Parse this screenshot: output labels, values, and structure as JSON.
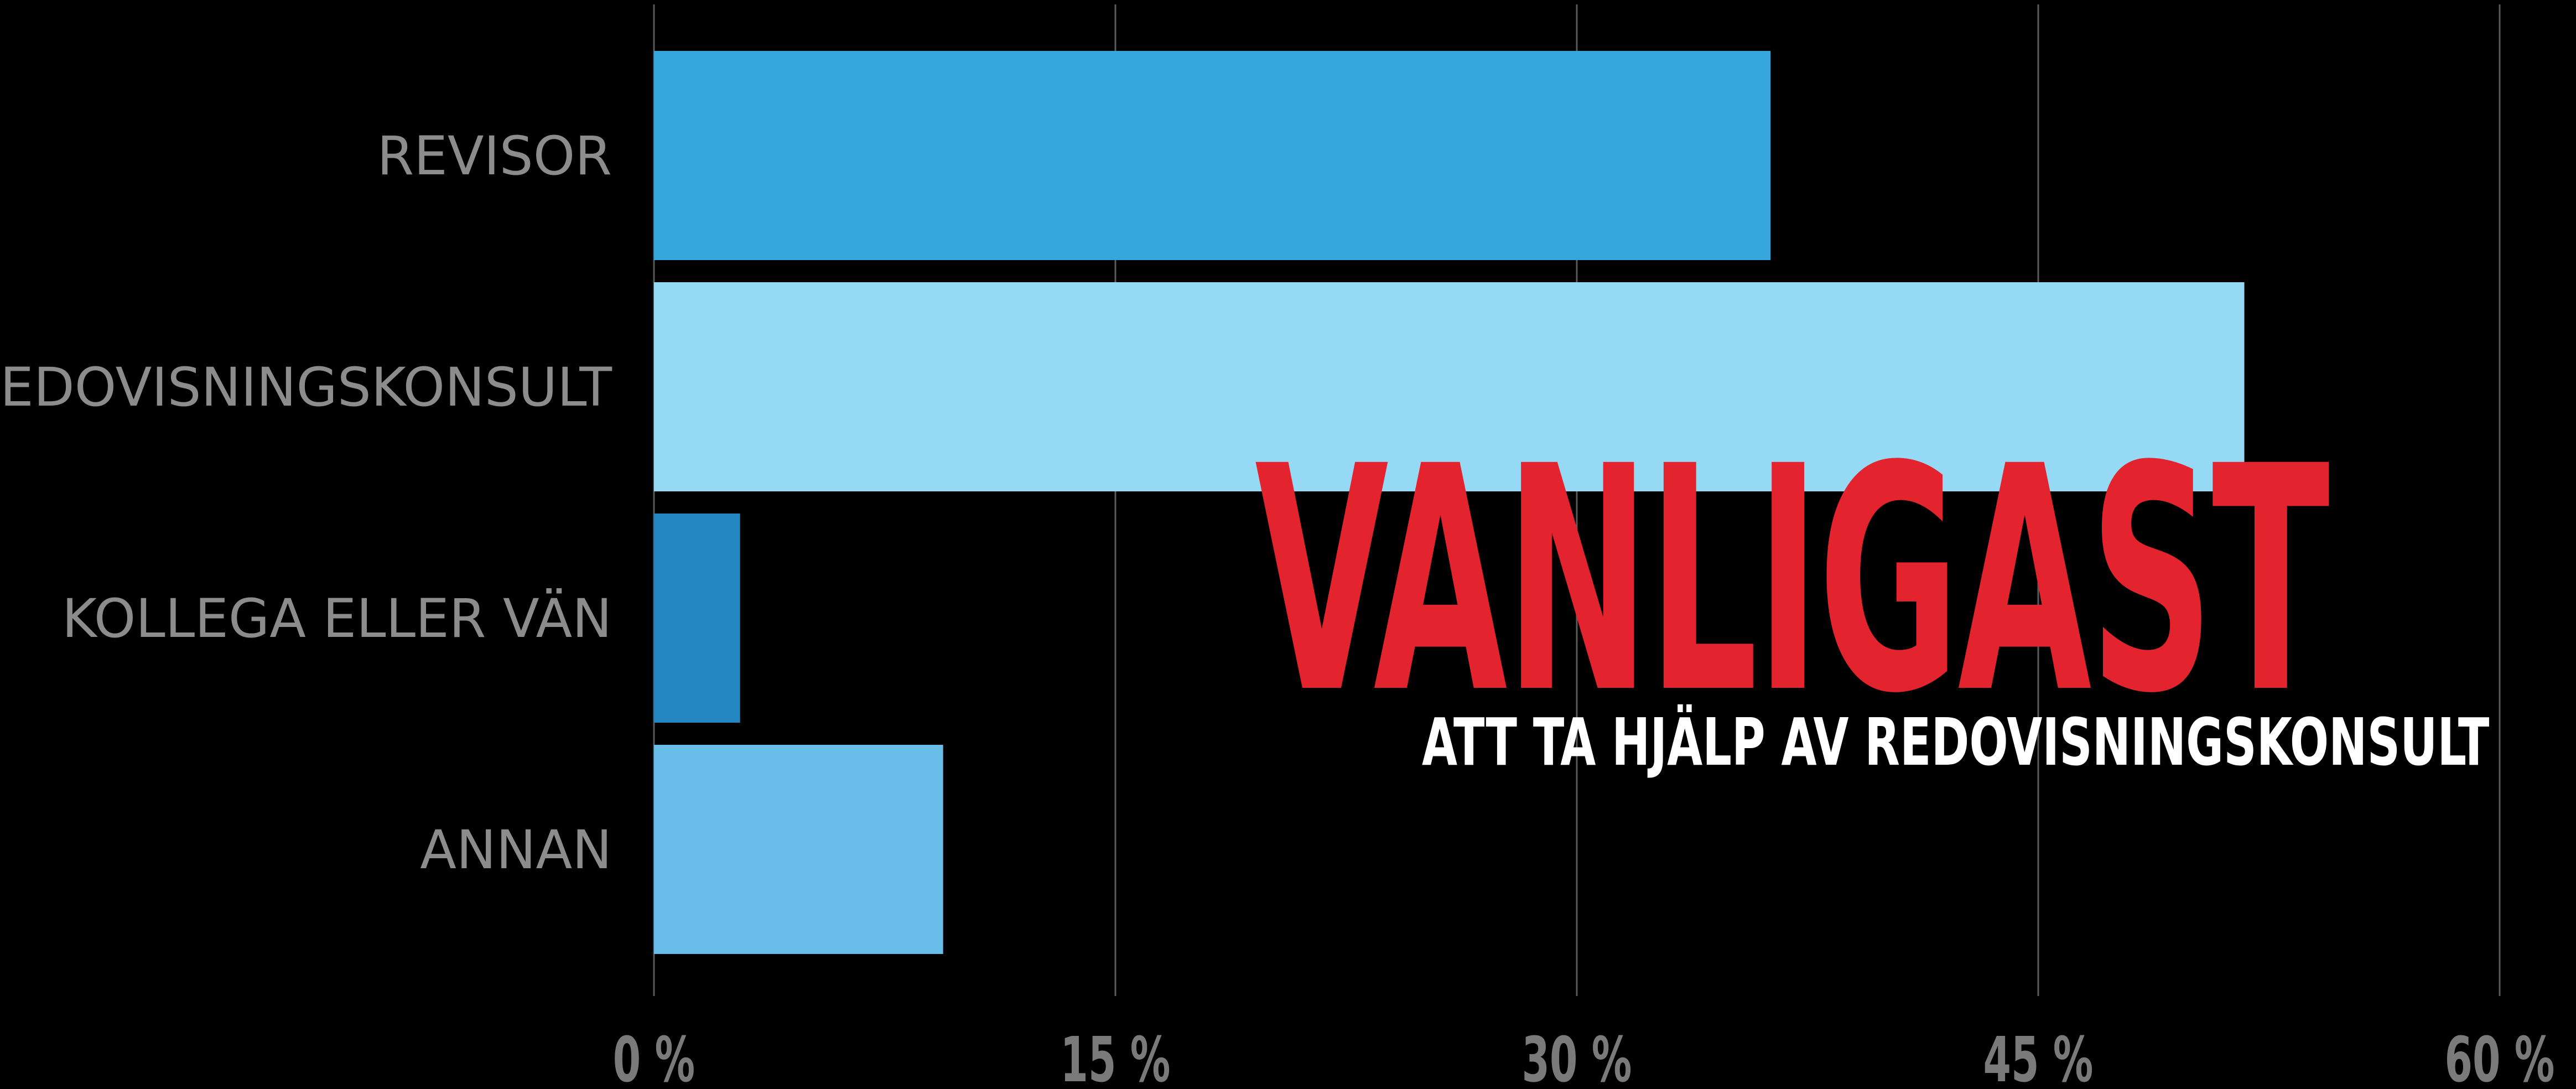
{
  "chart_data": {
    "type": "bar",
    "orientation": "horizontal",
    "categories": [
      "REVISOR",
      "REDOVISNINGSKONSULT",
      "KOLLEGA ELLER VÄN",
      "ANNAN"
    ],
    "values": [
      36.3,
      51.7,
      2.8,
      9.4
    ],
    "bar_colors": [
      "#36a7dd",
      "#96d9f5",
      "#2486c0",
      "#69bde9"
    ],
    "xlim": [
      0,
      60
    ],
    "ticks": [
      0,
      15,
      30,
      45,
      60
    ],
    "tick_labels": [
      "0 %",
      "15 %",
      "30 %",
      "45 %",
      "60 %"
    ],
    "grid": true,
    "title": "",
    "xlabel": "",
    "ylabel": ""
  },
  "annotation": {
    "headline": "VANLIGAST",
    "subline": "ATT TA HJÄLP AV REDOVISNINGSKONSULT",
    "headline_color": "#e3242f",
    "subline_color": "#ffffff"
  },
  "theme": {
    "background": "#000000",
    "label_color": "#8c8c8c",
    "tick_color": "#7a7a7a",
    "grid_color": "#5a5a5a"
  }
}
